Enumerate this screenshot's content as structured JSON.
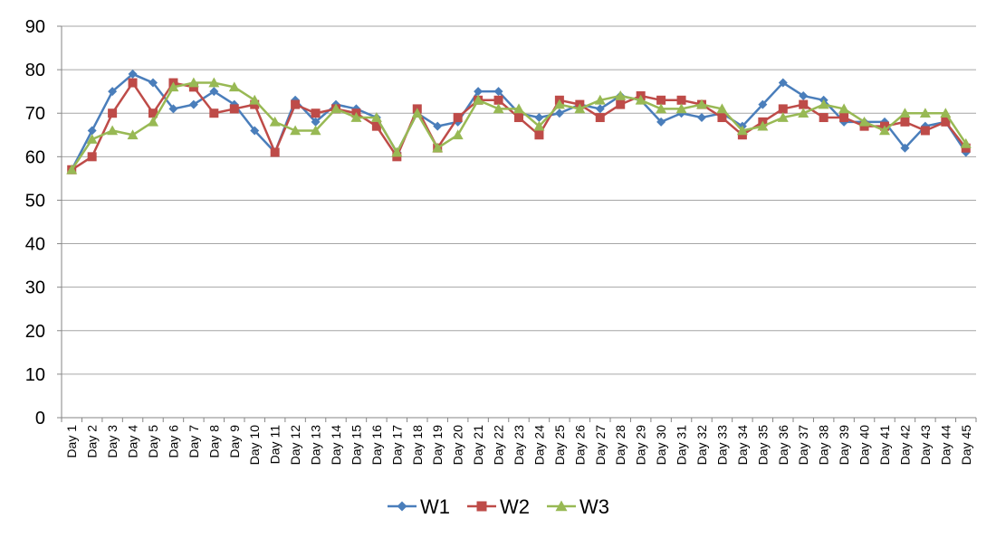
{
  "chart_data": {
    "type": "line",
    "title": "",
    "xlabel": "",
    "ylabel": "",
    "ylim": [
      0,
      90
    ],
    "yticks": [
      0,
      10,
      20,
      30,
      40,
      50,
      60,
      70,
      80,
      90
    ],
    "grid": "horizontal",
    "legend": "bottom",
    "categories": [
      "Day 1",
      "Day 2",
      "Day 3",
      "Day 4",
      "Day 5",
      "Day 6",
      "Day 7",
      "Day 8",
      "Day 9",
      "Day 10",
      "Day 11",
      "Day 12",
      "Day 13",
      "Day 14",
      "Day 15",
      "Day 16",
      "Day 17",
      "Day 18",
      "Day 19",
      "Day 20",
      "Day 21",
      "Day 22",
      "Day 23",
      "Day 24",
      "Day 25",
      "Day 26",
      "Day 27",
      "Day 28",
      "Day 29",
      "Day 30",
      "Day 31",
      "Day 32",
      "Day 33",
      "Day 34",
      "Day 35",
      "Day 36",
      "Day 37",
      "Day 38",
      "Day 39",
      "Day 40",
      "Day 41",
      "Day 42",
      "Day 43",
      "Day 44",
      "Day 45"
    ],
    "series": [
      {
        "name": "W1",
        "color": "#4a7ebb",
        "marker": "diamond",
        "values": [
          57,
          66,
          75,
          79,
          77,
          71,
          72,
          75,
          72,
          66,
          61,
          73,
          68,
          72,
          71,
          69,
          61,
          70,
          67,
          68,
          75,
          75,
          70,
          69,
          70,
          72,
          71,
          74,
          73,
          68,
          70,
          69,
          70,
          67,
          72,
          77,
          74,
          73,
          68,
          68,
          68,
          62,
          67,
          68,
          61
        ]
      },
      {
        "name": "W2",
        "color": "#be4b48",
        "marker": "square",
        "values": [
          57,
          60,
          70,
          77,
          70,
          77,
          76,
          70,
          71,
          72,
          61,
          72,
          70,
          71,
          70,
          67,
          60,
          71,
          62,
          69,
          73,
          73,
          69,
          65,
          73,
          72,
          69,
          72,
          74,
          73,
          73,
          72,
          69,
          65,
          68,
          71,
          72,
          69,
          69,
          67,
          67,
          68,
          66,
          68,
          62
        ]
      },
      {
        "name": "W3",
        "color": "#98b954",
        "marker": "triangle",
        "values": [
          57,
          64,
          66,
          65,
          68,
          76,
          77,
          77,
          76,
          73,
          68,
          66,
          66,
          71,
          69,
          69,
          61,
          70,
          62,
          65,
          73,
          71,
          71,
          67,
          72,
          71,
          73,
          74,
          73,
          71,
          71,
          72,
          71,
          66,
          67,
          69,
          70,
          72,
          71,
          68,
          66,
          70,
          70,
          70,
          63
        ]
      }
    ]
  }
}
